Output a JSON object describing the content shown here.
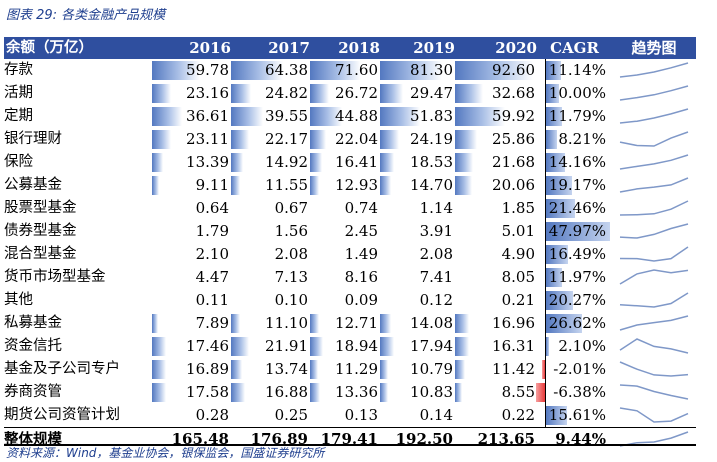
{
  "title": "图表 29:  各类金融产品规模",
  "header": {
    "label": "余额（万亿）",
    "years": [
      "2016",
      "2017",
      "2018",
      "2019",
      "2020"
    ],
    "cagr": "CAGR",
    "trend": "趋势图"
  },
  "rows": [
    {
      "label": "存款",
      "values": [
        "59.78",
        "64.38",
        "71.60",
        "81.30",
        "92.60"
      ],
      "cagr": "11.14%",
      "cagr_value": 11.14,
      "bar": true
    },
    {
      "label": " 活期",
      "values": [
        "23.16",
        "24.82",
        "26.72",
        "29.47",
        "32.68"
      ],
      "cagr": "10.00%",
      "cagr_value": 10.0,
      "bar": true
    },
    {
      "label": " 定期",
      "values": [
        "36.61",
        "39.55",
        "44.88",
        "51.83",
        "59.92"
      ],
      "cagr": "11.79%",
      "cagr_value": 11.79,
      "bar": true
    },
    {
      "label": "银行理财",
      "values": [
        "23.11",
        "22.17",
        "22.04",
        "24.19",
        "25.86"
      ],
      "cagr": "8.21%",
      "cagr_value": 8.21,
      "bar": true
    },
    {
      "label": "保险",
      "values": [
        "13.39",
        "14.92",
        "16.41",
        "18.53",
        "21.68"
      ],
      "cagr": "14.16%",
      "cagr_value": 14.16,
      "bar": true
    },
    {
      "label": "公募基金",
      "values": [
        "9.11",
        "11.55",
        "12.93",
        "14.70",
        "20.06"
      ],
      "cagr": "19.17%",
      "cagr_value": 19.17,
      "bar": true
    },
    {
      "label": " 股票型基金",
      "values": [
        "0.64",
        "0.67",
        "0.74",
        "1.14",
        "1.85"
      ],
      "cagr": "21.46%",
      "cagr_value": 21.46,
      "bar": false
    },
    {
      "label": " 债券型基金",
      "values": [
        "1.79",
        "1.56",
        "2.45",
        "3.91",
        "5.01"
      ],
      "cagr": "47.97%",
      "cagr_value": 47.97,
      "bar": false
    },
    {
      "label": " 混合型基金",
      "values": [
        "2.10",
        "2.08",
        "1.49",
        "2.08",
        "4.90"
      ],
      "cagr": "16.49%",
      "cagr_value": 16.49,
      "bar": false
    },
    {
      "label": " 货币市场型基金",
      "values": [
        "4.47",
        "7.13",
        "8.16",
        "7.41",
        "8.05"
      ],
      "cagr": "11.97%",
      "cagr_value": 11.97,
      "bar": false
    },
    {
      "label": " 其他",
      "values": [
        "0.11",
        "0.10",
        "0.09",
        "0.12",
        "0.21"
      ],
      "cagr": "20.27%",
      "cagr_value": 20.27,
      "bar": false
    },
    {
      "label": "私募基金",
      "values": [
        "7.89",
        "11.10",
        "12.71",
        "14.08",
        "16.96"
      ],
      "cagr": "26.62%",
      "cagr_value": 26.62,
      "bar": true
    },
    {
      "label": "资金信托",
      "values": [
        "17.46",
        "21.91",
        "18.94",
        "17.94",
        "16.31"
      ],
      "cagr": "2.10%",
      "cagr_value": 2.1,
      "bar": true
    },
    {
      "label": "基金及子公司专户",
      "values": [
        "16.89",
        "13.74",
        "11.29",
        "10.79",
        "11.42"
      ],
      "cagr": "-2.01%",
      "cagr_value": -2.01,
      "bar": true
    },
    {
      "label": "券商资管",
      "values": [
        "17.58",
        "16.88",
        "13.36",
        "10.83",
        "8.55"
      ],
      "cagr": "-6.38%",
      "cagr_value": -6.38,
      "bar": true
    },
    {
      "label": "期货公司资管计划",
      "values": [
        "0.28",
        "0.25",
        "0.13",
        "0.14",
        "0.22"
      ],
      "cagr": "15.61%",
      "cagr_value": 15.61,
      "bar": false
    },
    {
      "label": "整体规模",
      "values": [
        "165.48",
        "176.89",
        "179.41",
        "192.50",
        "213.65"
      ],
      "cagr": "9.44%",
      "cagr_value": 9.44,
      "bar": false,
      "total": true
    }
  ],
  "bar_max": 92.6,
  "cagr_max": 47.97,
  "source": "资料来源：Wind，基金业协会，银保监会，国盛证券研究所"
}
